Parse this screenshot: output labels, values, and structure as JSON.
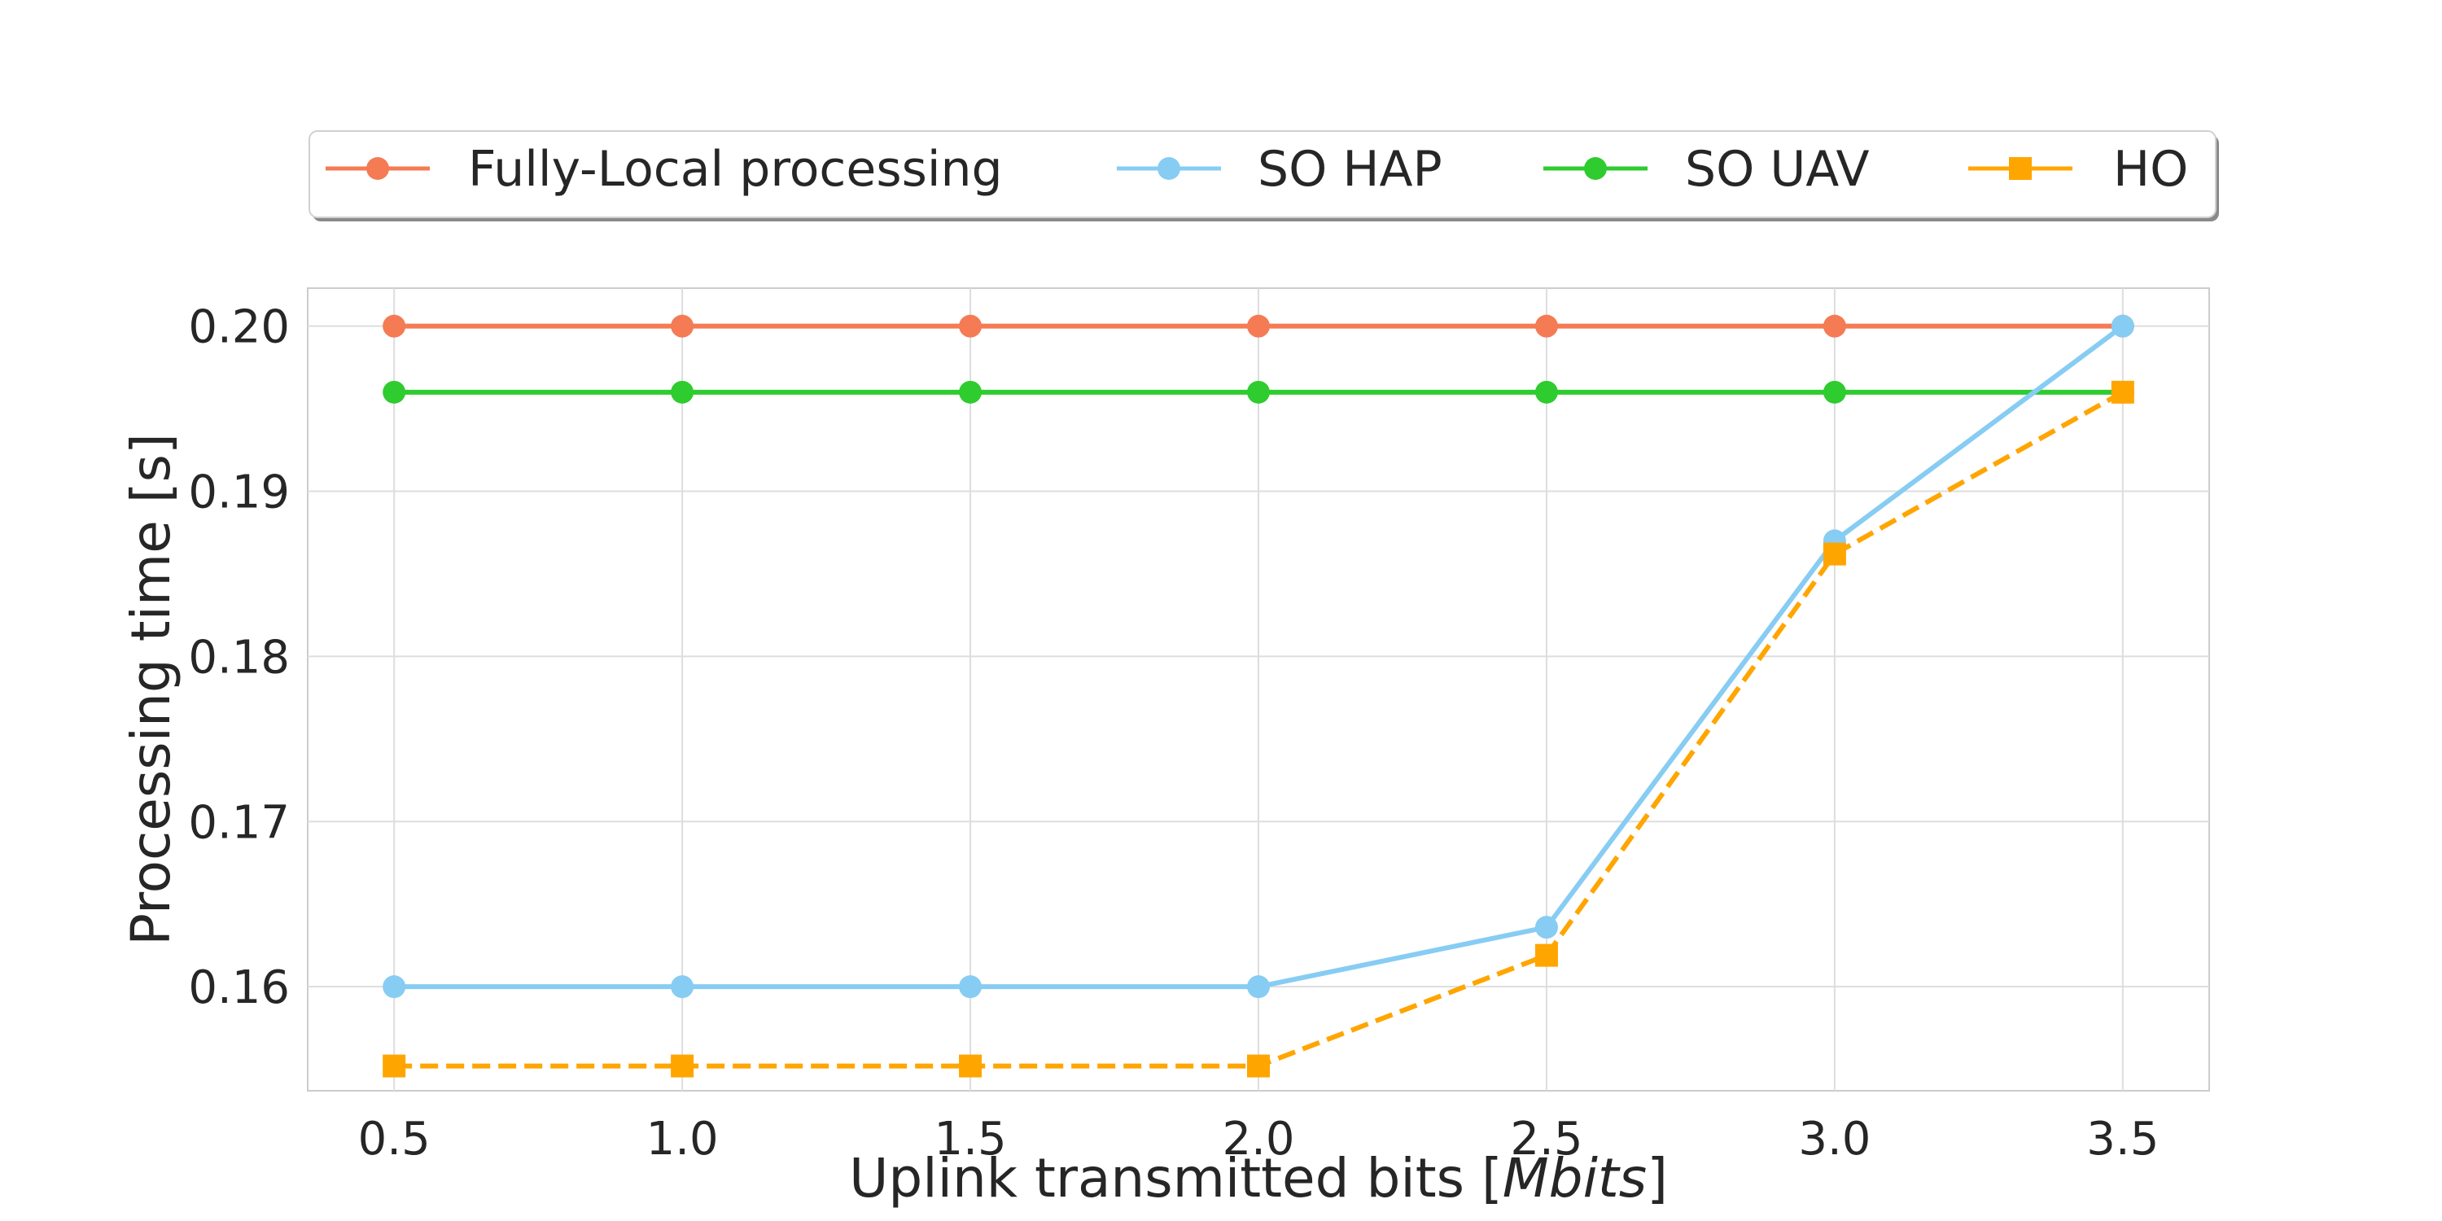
{
  "chart_data": {
    "type": "line",
    "title": "",
    "xlabel_prefix": "Uplink transmitted bits [",
    "xlabel_unit": "Mbits",
    "xlabel_suffix": "]",
    "ylabel": "Processing time [s]",
    "x": [
      0.5,
      1.0,
      1.5,
      2.0,
      2.5,
      3.0,
      3.5
    ],
    "xlim": [
      0.35,
      3.65
    ],
    "ylim": [
      0.1537,
      0.2023
    ],
    "xticks": [
      "0.5",
      "1.0",
      "1.5",
      "2.0",
      "2.5",
      "3.0",
      "3.5"
    ],
    "yticks": [
      "0.16",
      "0.17",
      "0.18",
      "0.19",
      "0.20"
    ],
    "ytick_values": [
      0.16,
      0.17,
      0.18,
      0.19,
      0.2
    ],
    "grid": true,
    "legend_position": "top-center",
    "series": [
      {
        "name": "Fully-Local processing",
        "color": "#f47b54",
        "marker": "circle",
        "dash": "solid",
        "values": [
          0.2,
          0.2,
          0.2,
          0.2,
          0.2,
          0.2,
          0.2
        ]
      },
      {
        "name": "SO HAP",
        "color": "#87ccf3",
        "marker": "circle",
        "dash": "solid",
        "values": [
          0.16,
          0.16,
          0.16,
          0.16,
          0.1636,
          0.187,
          0.2
        ]
      },
      {
        "name": "SO UAV",
        "color": "#2ecc2e",
        "marker": "circle",
        "dash": "solid",
        "values": [
          0.196,
          0.196,
          0.196,
          0.196,
          0.196,
          0.196,
          0.196
        ]
      },
      {
        "name": "HO",
        "color": "#ffa500",
        "marker": "square",
        "dash": "dashed",
        "values": [
          0.1552,
          0.1552,
          0.1552,
          0.1552,
          0.1619,
          0.1862,
          0.196
        ]
      }
    ]
  }
}
